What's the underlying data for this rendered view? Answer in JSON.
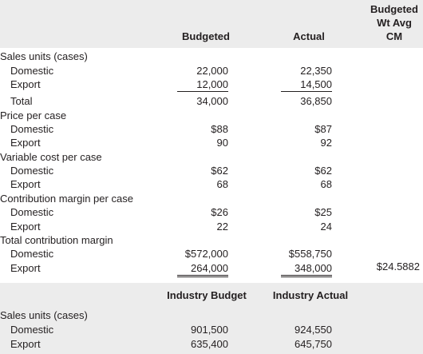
{
  "header": {
    "budgeted": "Budgeted",
    "actual": "Actual",
    "wt_avg_line1": "Budgeted",
    "wt_avg_line2": "Wt Avg",
    "wt_avg_line3": "CM"
  },
  "sales_units": {
    "label": "Sales units (cases)",
    "domestic": {
      "label": "Domestic",
      "budgeted": "22,000",
      "actual": "22,350"
    },
    "export": {
      "label": "Export",
      "budgeted": "12,000",
      "actual": "14,500"
    },
    "total": {
      "label": "Total",
      "budgeted": "34,000",
      "actual": "36,850"
    }
  },
  "price": {
    "label": "Price per case",
    "domestic": {
      "label": "Domestic",
      "budgeted": "$88",
      "actual": "$87"
    },
    "export": {
      "label": "Export",
      "budgeted": "90",
      "actual": "92"
    }
  },
  "variable_cost": {
    "label": "Variable cost per case",
    "domestic": {
      "label": "Domestic",
      "budgeted": "$62",
      "actual": "$62"
    },
    "export": {
      "label": "Export",
      "budgeted": "68",
      "actual": "68"
    }
  },
  "cm_per_case": {
    "label": "Contribution margin per case",
    "domestic": {
      "label": "Domestic",
      "budgeted": "$26",
      "actual": "$25"
    },
    "export": {
      "label": "Export",
      "budgeted": "22",
      "actual": "24"
    }
  },
  "total_cm": {
    "label": "Total contribution margin",
    "domestic": {
      "label": "Domestic",
      "budgeted": "$572,000",
      "actual": "$558,750"
    },
    "export": {
      "label": "Export",
      "budgeted": "264,000",
      "actual": "348,000"
    },
    "wt_avg_cm": "$24.5882"
  },
  "industry_header": {
    "budget": "Industry Budget",
    "actual": "Industry Actual"
  },
  "industry_sales": {
    "label": "Sales units (cases)",
    "domestic": {
      "label": "Domestic",
      "budget": "901,500",
      "actual": "924,550"
    },
    "export": {
      "label": "Export",
      "budget": "635,400",
      "actual": "645,750"
    }
  }
}
